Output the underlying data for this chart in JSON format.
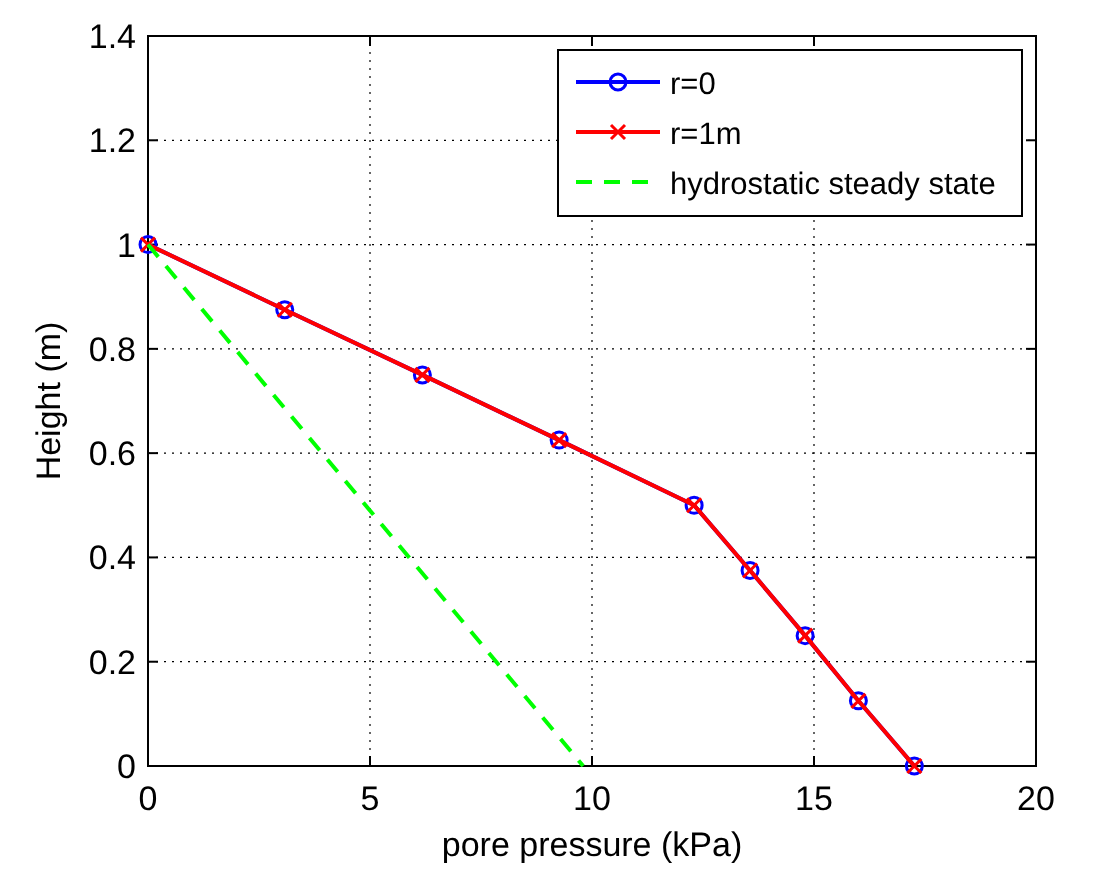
{
  "chart_data": {
    "type": "line",
    "xlabel": "pore pressure (kPa)",
    "ylabel": "Height (m)",
    "xlim": [
      0,
      20
    ],
    "xticks": [
      0,
      5,
      10,
      15,
      20
    ],
    "ylim": [
      0,
      1.4
    ],
    "yticks": [
      0,
      0.2,
      0.4,
      0.6,
      0.8,
      1,
      1.2,
      1.4
    ],
    "grid": true,
    "legend": "top right",
    "series": [
      {
        "name": "r=0",
        "color": "#0000ff",
        "marker": "circle",
        "line_style": "solid",
        "x": [
          0,
          3.08,
          6.18,
          9.26,
          12.3,
          13.56,
          14.8,
          16.0,
          17.26
        ],
        "values": [
          1,
          0.875,
          0.75,
          0.625,
          0.5,
          0.375,
          0.25,
          0.125,
          0
        ]
      },
      {
        "name": "r=1m",
        "color": "#ff0000",
        "marker": "cross",
        "line_style": "solid",
        "x": [
          0,
          3.08,
          6.18,
          9.26,
          12.3,
          13.56,
          14.8,
          16.0,
          17.26
        ],
        "values": [
          1,
          0.875,
          0.75,
          0.625,
          0.5,
          0.375,
          0.25,
          0.125,
          0
        ]
      },
      {
        "name": "hydrostatic steady state",
        "color": "#00ff00",
        "marker": "none",
        "line_style": "dashed",
        "x": [
          0,
          9.8
        ],
        "values": [
          1,
          0
        ]
      }
    ]
  }
}
